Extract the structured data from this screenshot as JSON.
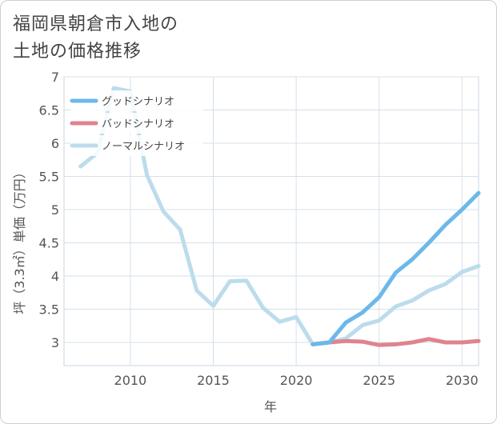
{
  "title_line1": "福岡県朝倉市入地の",
  "title_line2": "土地の価格推移",
  "chart_data": {
    "type": "line",
    "xlabel": "年",
    "ylabel": "坪（3.3㎡）単価（万円）",
    "xlim": [
      2006,
      2031
    ],
    "ylim": [
      2.65,
      7.0
    ],
    "xticks": [
      2010,
      2015,
      2020,
      2025,
      2030
    ],
    "yticks": [
      3,
      3.5,
      4,
      4.5,
      5,
      5.5,
      6,
      6.5,
      7
    ],
    "grid": true,
    "legend_position": "top-left",
    "series": [
      {
        "name": "グッドシナリオ",
        "color": "#6cb8ea",
        "x": [
          2021,
          2022,
          2023,
          2024,
          2025,
          2026,
          2027,
          2028,
          2029,
          2030,
          2031
        ],
        "values": [
          2.97,
          3.0,
          3.3,
          3.45,
          3.68,
          4.05,
          4.25,
          4.5,
          4.77,
          5.0,
          5.25
        ]
      },
      {
        "name": "バッドシナリオ",
        "color": "#e0838e",
        "x": [
          2021,
          2022,
          2023,
          2024,
          2025,
          2026,
          2027,
          2028,
          2029,
          2030,
          2031
        ],
        "values": [
          2.97,
          3.0,
          3.02,
          3.01,
          2.96,
          2.97,
          3.0,
          3.05,
          3.0,
          3.0,
          3.02
        ]
      },
      {
        "name": "ノーマルシナリオ",
        "color": "#bcdcec",
        "x": [
          2007,
          2008,
          2009,
          2010,
          2011,
          2012,
          2013,
          2014,
          2015,
          2016,
          2017,
          2018,
          2019,
          2020,
          2021,
          2022,
          2023,
          2024,
          2025,
          2026,
          2027,
          2028,
          2029,
          2030,
          2031
        ],
        "values": [
          5.65,
          5.85,
          6.83,
          6.78,
          5.52,
          4.97,
          4.7,
          3.78,
          3.55,
          3.92,
          3.93,
          3.52,
          3.31,
          3.38,
          2.97,
          3.0,
          3.06,
          3.26,
          3.33,
          3.54,
          3.63,
          3.78,
          3.88,
          4.06,
          4.15
        ]
      }
    ]
  }
}
